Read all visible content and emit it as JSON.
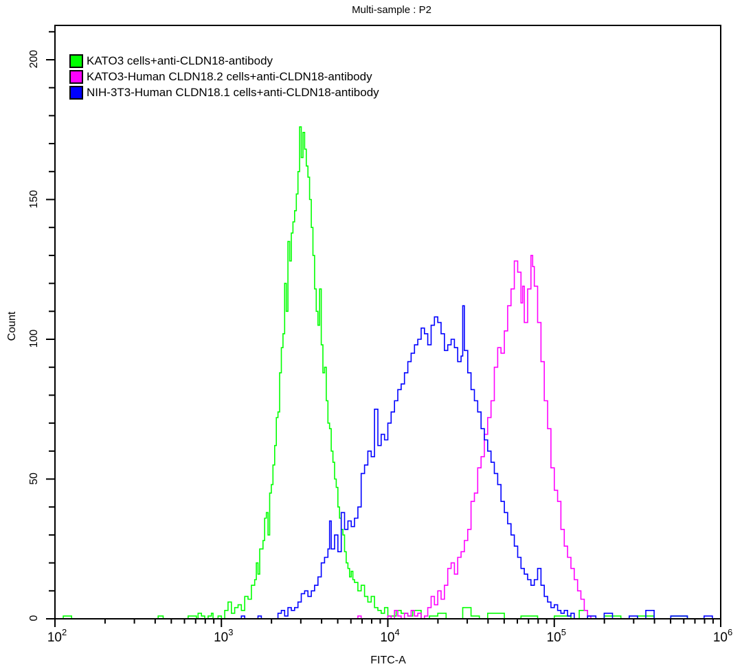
{
  "chart_data": {
    "type": "line",
    "title": "Multi-sample : P2",
    "xlabel": "FITC-A",
    "ylabel": "Count",
    "xscale": "log",
    "xlim": [
      100,
      1000000
    ],
    "ylim": [
      0,
      200
    ],
    "ylim_display": [
      0,
      212
    ],
    "grid": false,
    "legend_position": "upper-left",
    "x_ticks": [
      {
        "base": "10",
        "exp": "2",
        "log10": 2
      },
      {
        "base": "10",
        "exp": "3",
        "log10": 3
      },
      {
        "base": "10",
        "exp": "4",
        "log10": 4
      },
      {
        "base": "10",
        "exp": "5",
        "log10": 5
      },
      {
        "base": "10",
        "exp": "6",
        "log10": 6
      }
    ],
    "y_ticks": [
      0,
      50,
      100,
      150,
      200
    ],
    "x_units": "log10(FITC-A)",
    "series": [
      {
        "name": "KATO3 cells+anti-CLDN18-antibody",
        "color": "#00ff00",
        "points": [
          [
            2.0,
            0
          ],
          [
            2.05,
            1
          ],
          [
            2.1,
            0
          ],
          [
            2.6,
            0
          ],
          [
            2.62,
            1
          ],
          [
            2.65,
            0
          ],
          [
            2.78,
            0
          ],
          [
            2.8,
            1
          ],
          [
            2.85,
            0
          ],
          [
            2.86,
            2
          ],
          [
            2.88,
            1
          ],
          [
            2.9,
            0
          ],
          [
            2.92,
            1
          ],
          [
            2.94,
            2
          ],
          [
            2.95,
            0
          ],
          [
            2.98,
            1
          ],
          [
            3.0,
            0
          ],
          [
            3.02,
            3
          ],
          [
            3.04,
            6
          ],
          [
            3.06,
            2
          ],
          [
            3.08,
            4
          ],
          [
            3.1,
            5
          ],
          [
            3.12,
            3
          ],
          [
            3.14,
            8
          ],
          [
            3.16,
            7
          ],
          [
            3.18,
            12
          ],
          [
            3.2,
            14
          ],
          [
            3.21,
            20
          ],
          [
            3.22,
            16
          ],
          [
            3.23,
            25
          ],
          [
            3.25,
            28
          ],
          [
            3.26,
            36
          ],
          [
            3.27,
            38
          ],
          [
            3.28,
            30
          ],
          [
            3.29,
            45
          ],
          [
            3.3,
            48
          ],
          [
            3.31,
            55
          ],
          [
            3.32,
            62
          ],
          [
            3.33,
            72
          ],
          [
            3.34,
            74
          ],
          [
            3.35,
            88
          ],
          [
            3.36,
            97
          ],
          [
            3.37,
            102
          ],
          [
            3.38,
            120
          ],
          [
            3.39,
            110
          ],
          [
            3.4,
            135
          ],
          [
            3.41,
            128
          ],
          [
            3.42,
            138
          ],
          [
            3.43,
            142
          ],
          [
            3.44,
            146
          ],
          [
            3.45,
            152
          ],
          [
            3.46,
            160
          ],
          [
            3.47,
            176
          ],
          [
            3.48,
            165
          ],
          [
            3.49,
            174
          ],
          [
            3.5,
            168
          ],
          [
            3.51,
            162
          ],
          [
            3.52,
            158
          ],
          [
            3.53,
            150
          ],
          [
            3.54,
            140
          ],
          [
            3.55,
            130
          ],
          [
            3.56,
            118
          ],
          [
            3.57,
            110
          ],
          [
            3.58,
            105
          ],
          [
            3.59,
            118
          ],
          [
            3.6,
            98
          ],
          [
            3.61,
            88
          ],
          [
            3.62,
            90
          ],
          [
            3.63,
            78
          ],
          [
            3.64,
            70
          ],
          [
            3.65,
            68
          ],
          [
            3.66,
            60
          ],
          [
            3.67,
            56
          ],
          [
            3.68,
            50
          ],
          [
            3.69,
            47
          ],
          [
            3.7,
            40
          ],
          [
            3.71,
            36
          ],
          [
            3.72,
            32
          ],
          [
            3.73,
            30
          ],
          [
            3.74,
            24
          ],
          [
            3.75,
            20
          ],
          [
            3.76,
            18
          ],
          [
            3.77,
            15
          ],
          [
            3.78,
            17
          ],
          [
            3.79,
            14
          ],
          [
            3.8,
            13
          ],
          [
            3.82,
            10
          ],
          [
            3.84,
            12
          ],
          [
            3.86,
            8
          ],
          [
            3.88,
            6
          ],
          [
            3.9,
            8
          ],
          [
            3.92,
            4
          ],
          [
            3.94,
            3
          ],
          [
            3.96,
            2
          ],
          [
            3.98,
            4
          ],
          [
            4.0,
            1
          ],
          [
            4.05,
            3
          ],
          [
            4.08,
            2
          ],
          [
            4.12,
            1
          ],
          [
            4.15,
            3
          ],
          [
            4.2,
            0
          ],
          [
            4.25,
            1
          ],
          [
            4.3,
            2
          ],
          [
            4.35,
            0
          ],
          [
            4.45,
            4
          ],
          [
            4.5,
            1
          ],
          [
            4.55,
            0
          ],
          [
            4.6,
            2
          ],
          [
            4.7,
            0
          ],
          [
            4.8,
            1
          ],
          [
            4.9,
            0
          ],
          [
            5.0,
            1
          ],
          [
            5.1,
            0
          ],
          [
            5.15,
            3
          ],
          [
            5.2,
            0
          ],
          [
            5.3,
            1
          ],
          [
            5.4,
            0
          ],
          [
            5.5,
            1
          ],
          [
            5.6,
            0
          ],
          [
            5.7,
            1
          ],
          [
            5.8,
            0
          ],
          [
            5.9,
            0
          ],
          [
            6.0,
            0
          ]
        ]
      },
      {
        "name": "KATO3-Human CLDN18.2 cells+anti-CLDN18-antibody",
        "color": "#ff00ff",
        "points": [
          [
            2.0,
            0
          ],
          [
            3.8,
            0
          ],
          [
            3.82,
            1
          ],
          [
            3.84,
            0
          ],
          [
            3.98,
            0
          ],
          [
            4.0,
            1
          ],
          [
            4.02,
            0
          ],
          [
            4.04,
            3
          ],
          [
            4.06,
            1
          ],
          [
            4.08,
            0
          ],
          [
            4.1,
            2
          ],
          [
            4.12,
            1
          ],
          [
            4.14,
            3
          ],
          [
            4.16,
            1
          ],
          [
            4.18,
            2
          ],
          [
            4.2,
            0
          ],
          [
            4.22,
            1
          ],
          [
            4.24,
            4
          ],
          [
            4.26,
            8
          ],
          [
            4.28,
            5
          ],
          [
            4.3,
            10
          ],
          [
            4.32,
            7
          ],
          [
            4.34,
            12
          ],
          [
            4.36,
            18
          ],
          [
            4.38,
            20
          ],
          [
            4.4,
            16
          ],
          [
            4.42,
            22
          ],
          [
            4.44,
            24
          ],
          [
            4.46,
            28
          ],
          [
            4.48,
            32
          ],
          [
            4.5,
            42
          ],
          [
            4.52,
            45
          ],
          [
            4.54,
            54
          ],
          [
            4.56,
            58
          ],
          [
            4.58,
            66
          ],
          [
            4.6,
            72
          ],
          [
            4.62,
            78
          ],
          [
            4.64,
            90
          ],
          [
            4.66,
            97
          ],
          [
            4.68,
            95
          ],
          [
            4.7,
            103
          ],
          [
            4.72,
            112
          ],
          [
            4.74,
            118
          ],
          [
            4.76,
            128
          ],
          [
            4.78,
            124
          ],
          [
            4.8,
            113
          ],
          [
            4.81,
            119
          ],
          [
            4.82,
            106
          ],
          [
            4.84,
            118
          ],
          [
            4.86,
            130
          ],
          [
            4.87,
            126
          ],
          [
            4.88,
            119
          ],
          [
            4.9,
            106
          ],
          [
            4.92,
            92
          ],
          [
            4.94,
            78
          ],
          [
            4.96,
            68
          ],
          [
            4.98,
            54
          ],
          [
            5.0,
            46
          ],
          [
            5.02,
            42
          ],
          [
            5.04,
            32
          ],
          [
            5.06,
            26
          ],
          [
            5.08,
            22
          ],
          [
            5.1,
            18
          ],
          [
            5.12,
            14
          ],
          [
            5.14,
            10
          ],
          [
            5.16,
            7
          ],
          [
            5.18,
            3
          ],
          [
            5.2,
            1
          ],
          [
            5.22,
            0
          ],
          [
            5.3,
            0
          ],
          [
            6.0,
            0
          ]
        ]
      },
      {
        "name": "NIH-3T3-Human CLDN18.1 cells+anti-CLDN18-antibody",
        "color": "#0000ff",
        "points": [
          [
            2.0,
            0
          ],
          [
            3.1,
            0
          ],
          [
            3.12,
            1
          ],
          [
            3.14,
            0
          ],
          [
            3.2,
            0
          ],
          [
            3.22,
            1
          ],
          [
            3.24,
            0
          ],
          [
            3.32,
            0
          ],
          [
            3.34,
            2
          ],
          [
            3.36,
            3
          ],
          [
            3.38,
            1
          ],
          [
            3.4,
            4
          ],
          [
            3.42,
            3
          ],
          [
            3.44,
            4
          ],
          [
            3.46,
            6
          ],
          [
            3.48,
            9
          ],
          [
            3.5,
            10
          ],
          [
            3.52,
            8
          ],
          [
            3.54,
            10
          ],
          [
            3.56,
            12
          ],
          [
            3.58,
            15
          ],
          [
            3.6,
            20
          ],
          [
            3.62,
            22
          ],
          [
            3.64,
            25
          ],
          [
            3.65,
            35
          ],
          [
            3.66,
            25
          ],
          [
            3.68,
            30
          ],
          [
            3.7,
            24
          ],
          [
            3.72,
            38
          ],
          [
            3.74,
            32
          ],
          [
            3.76,
            35
          ],
          [
            3.78,
            33
          ],
          [
            3.8,
            36
          ],
          [
            3.82,
            40
          ],
          [
            3.84,
            52
          ],
          [
            3.86,
            55
          ],
          [
            3.88,
            60
          ],
          [
            3.9,
            58
          ],
          [
            3.92,
            75
          ],
          [
            3.94,
            62
          ],
          [
            3.96,
            66
          ],
          [
            3.98,
            64
          ],
          [
            4.0,
            70
          ],
          [
            4.02,
            74
          ],
          [
            4.04,
            78
          ],
          [
            4.06,
            82
          ],
          [
            4.08,
            84
          ],
          [
            4.1,
            88
          ],
          [
            4.12,
            92
          ],
          [
            4.14,
            95
          ],
          [
            4.16,
            98
          ],
          [
            4.18,
            100
          ],
          [
            4.2,
            104
          ],
          [
            4.22,
            102
          ],
          [
            4.24,
            98
          ],
          [
            4.26,
            105
          ],
          [
            4.28,
            108
          ],
          [
            4.3,
            106
          ],
          [
            4.32,
            102
          ],
          [
            4.34,
            96
          ],
          [
            4.36,
            98
          ],
          [
            4.38,
            100
          ],
          [
            4.4,
            97
          ],
          [
            4.42,
            92
          ],
          [
            4.44,
            94
          ],
          [
            4.45,
            112
          ],
          [
            4.46,
            96
          ],
          [
            4.48,
            88
          ],
          [
            4.5,
            82
          ],
          [
            4.52,
            78
          ],
          [
            4.54,
            74
          ],
          [
            4.56,
            68
          ],
          [
            4.58,
            64
          ],
          [
            4.6,
            60
          ],
          [
            4.62,
            56
          ],
          [
            4.64,
            52
          ],
          [
            4.66,
            48
          ],
          [
            4.68,
            42
          ],
          [
            4.7,
            38
          ],
          [
            4.72,
            34
          ],
          [
            4.74,
            30
          ],
          [
            4.76,
            26
          ],
          [
            4.78,
            22
          ],
          [
            4.8,
            18
          ],
          [
            4.82,
            16
          ],
          [
            4.84,
            14
          ],
          [
            4.86,
            12
          ],
          [
            4.88,
            14
          ],
          [
            4.9,
            18
          ],
          [
            4.92,
            12
          ],
          [
            4.94,
            8
          ],
          [
            4.96,
            6
          ],
          [
            4.98,
            4
          ],
          [
            5.0,
            5
          ],
          [
            5.02,
            3
          ],
          [
            5.04,
            2
          ],
          [
            5.06,
            3
          ],
          [
            5.08,
            1
          ],
          [
            5.1,
            2
          ],
          [
            5.12,
            0
          ],
          [
            5.2,
            1
          ],
          [
            5.25,
            0
          ],
          [
            5.3,
            2
          ],
          [
            5.35,
            0
          ],
          [
            5.45,
            1
          ],
          [
            5.5,
            0
          ],
          [
            5.55,
            3
          ],
          [
            5.6,
            0
          ],
          [
            5.7,
            1
          ],
          [
            5.8,
            0
          ],
          [
            5.9,
            1
          ],
          [
            5.95,
            0
          ],
          [
            6.0,
            3
          ]
        ]
      }
    ]
  },
  "legend": {
    "items": [
      {
        "label": "KATO3 cells+anti-CLDN18-antibody",
        "color": "#00ff00"
      },
      {
        "label": "KATO3-Human CLDN18.2 cells+anti-CLDN18-antibody",
        "color": "#ff00ff"
      },
      {
        "label": "NIH-3T3-Human CLDN18.1 cells+anti-CLDN18-antibody",
        "color": "#0000ff"
      }
    ]
  }
}
